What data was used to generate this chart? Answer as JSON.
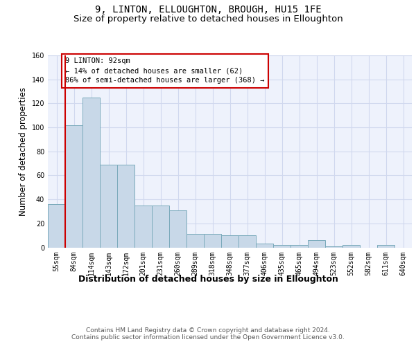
{
  "title": "9, LINTON, ELLOUGHTON, BROUGH, HU15 1FE",
  "subtitle": "Size of property relative to detached houses in Elloughton",
  "xlabel": "Distribution of detached houses by size in Elloughton",
  "ylabel": "Number of detached properties",
  "categories": [
    "55sqm",
    "84sqm",
    "114sqm",
    "143sqm",
    "172sqm",
    "201sqm",
    "231sqm",
    "260sqm",
    "289sqm",
    "318sqm",
    "348sqm",
    "377sqm",
    "406sqm",
    "435sqm",
    "465sqm",
    "494sqm",
    "523sqm",
    "552sqm",
    "582sqm",
    "611sqm",
    "640sqm"
  ],
  "values": [
    36,
    102,
    125,
    69,
    69,
    35,
    35,
    31,
    11,
    11,
    10,
    10,
    3,
    2,
    2,
    6,
    1,
    2,
    0,
    2,
    0
  ],
  "bar_color": "#c8d8e8",
  "bar_edge_color": "#7aaabb",
  "grid_color": "#d0d8ee",
  "bg_color": "#eef2fc",
  "annotation_text": "9 LINTON: 92sqm\n← 14% of detached houses are smaller (62)\n86% of semi-detached houses are larger (368) →",
  "annotation_box_color": "white",
  "annotation_box_edge": "#cc0000",
  "vline_color": "#cc0000",
  "ylim": [
    0,
    160
  ],
  "yticks": [
    0,
    20,
    40,
    60,
    80,
    100,
    120,
    140,
    160
  ],
  "footnote": "Contains HM Land Registry data © Crown copyright and database right 2024.\nContains public sector information licensed under the Open Government Licence v3.0.",
  "title_fontsize": 10,
  "subtitle_fontsize": 9.5,
  "xlabel_fontsize": 9,
  "ylabel_fontsize": 8.5,
  "tick_fontsize": 7,
  "footnote_fontsize": 6.5,
  "ann_fontsize": 7.5
}
